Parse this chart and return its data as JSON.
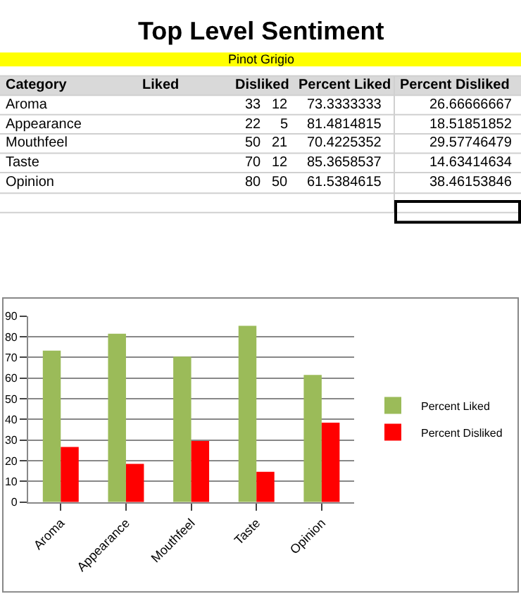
{
  "chart_data": [
    {
      "type": "other",
      "title": "Top Level Sentiment",
      "subtitle": "Pinot Grigio",
      "xlabel": "Category",
      "data_labels": true,
      "categories": [
        "Aroma",
        "Appearance",
        "Mouthfeel",
        "Taste",
        "Opinion"
      ],
      "series": [
        {
          "name": "Liked",
          "values": [
            33,
            22,
            50,
            70,
            80
          ]
        },
        {
          "name": "Disliked",
          "values": [
            12,
            5,
            21,
            12,
            50
          ]
        },
        {
          "name": "Percent Liked",
          "values": [
            73.3333333,
            81.4814815,
            70.4225352,
            85.3658537,
            61.5384615
          ]
        },
        {
          "name": "Percent Disliked",
          "values": [
            26.66666667,
            18.51851852,
            29.57746479,
            14.63414634,
            38.46153846
          ]
        }
      ]
    },
    {
      "type": "bar",
      "categories": [
        "Aroma",
        "Appearance",
        "Mouthfeel",
        "Taste",
        "Opinion"
      ],
      "series": [
        {
          "name": "Percent Liked",
          "color": "#9bbb59",
          "values": [
            73.3333333,
            81.4814815,
            70.4225352,
            85.3658537,
            61.5384615
          ]
        },
        {
          "name": "Percent Disliked",
          "color": "#ff0000",
          "values": [
            26.66666667,
            18.51851852,
            29.57746479,
            14.63414634,
            38.46153846
          ]
        }
      ],
      "ylim": [
        0,
        90
      ],
      "yticks": [
        0,
        10,
        20,
        30,
        40,
        50,
        60,
        70,
        80,
        90
      ],
      "grid": "y",
      "legend": "right"
    }
  ]
}
